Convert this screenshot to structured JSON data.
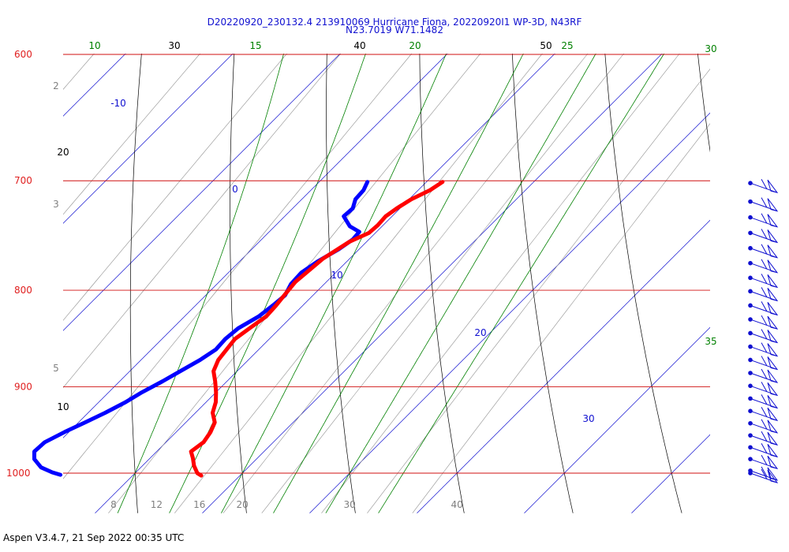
{
  "chart_data": {
    "type": "skew-t",
    "title_line1": "D20220920_230132.4 213910069 Hurricane Fiona, 20220920I1 WP-3D, N43RF",
    "title_line2": "N23.7019 W71.1482",
    "footer": "Aspen V3.4.7, 21 Sep 2022  00:35 UTC",
    "pressure_labels": [
      {
        "p": 600,
        "label": "600"
      },
      {
        "p": 700,
        "label": "700"
      },
      {
        "p": 800,
        "label": "800"
      },
      {
        "p": 900,
        "label": "900"
      },
      {
        "p": 1000,
        "label": "1000"
      }
    ],
    "bottom_temp_labels": [
      {
        "t": 8,
        "label": "8"
      },
      {
        "t": 12,
        "label": "12"
      },
      {
        "t": 16,
        "label": "16"
      },
      {
        "t": 20,
        "label": "20"
      },
      {
        "t": 30,
        "label": "30"
      },
      {
        "t": 40,
        "label": "40"
      }
    ],
    "dry_adiabat_labels": [
      {
        "theta": 10,
        "label": "10"
      },
      {
        "theta": 20,
        "label": "20"
      },
      {
        "theta": 30,
        "label": "30"
      },
      {
        "theta": 40,
        "label": "40"
      },
      {
        "theta": 50,
        "label": "50"
      }
    ],
    "moist_adiabat_labels": [
      {
        "theta": 10,
        "label": "10"
      },
      {
        "theta": 15,
        "label": "15"
      },
      {
        "theta": 20,
        "label": "20"
      },
      {
        "theta": 25,
        "label": "25"
      },
      {
        "theta": 30,
        "label": "30"
      },
      {
        "theta": 35,
        "label": "35"
      }
    ],
    "isotherm_labels": [
      {
        "t": -10,
        "label": "-10"
      },
      {
        "t": 0,
        "label": "0"
      },
      {
        "t": 10,
        "label": "10"
      },
      {
        "t": 20,
        "label": "20"
      },
      {
        "t": 30,
        "label": "30"
      }
    ],
    "mixing_ratio_labels": [
      {
        "w": 2,
        "label": "2"
      },
      {
        "w": 3,
        "label": "3"
      },
      {
        "w": 5,
        "label": "5"
      }
    ],
    "temperature_profile": [
      [
        701,
        11.5
      ],
      [
        708,
        11.1
      ],
      [
        716,
        10.2
      ],
      [
        724,
        9.7
      ],
      [
        731,
        9.4
      ],
      [
        739,
        9.5
      ],
      [
        746,
        9.4
      ],
      [
        754,
        8.4
      ],
      [
        761,
        8.0
      ],
      [
        770,
        7.5
      ],
      [
        781,
        7.3
      ],
      [
        792,
        7.1
      ],
      [
        804,
        7.3
      ],
      [
        815,
        7.5
      ],
      [
        826,
        7.6
      ],
      [
        837,
        7.2
      ],
      [
        849,
        6.8
      ],
      [
        860,
        7.0
      ],
      [
        871,
        7.2
      ],
      [
        883,
        7.8
      ],
      [
        894,
        8.9
      ],
      [
        906,
        10.0
      ],
      [
        917,
        10.9
      ],
      [
        929,
        11.6
      ],
      [
        940,
        12.7
      ],
      [
        951,
        13.2
      ],
      [
        963,
        13.5
      ],
      [
        974,
        13.2
      ],
      [
        982,
        14.0
      ],
      [
        991,
        14.8
      ],
      [
        1000,
        15.8
      ],
      [
        1003,
        16.4
      ]
    ],
    "dewpoint_profile": [
      [
        701,
        4.5
      ],
      [
        708,
        4.9
      ],
      [
        716,
        5.0
      ],
      [
        724,
        5.6
      ],
      [
        731,
        5.5
      ],
      [
        740,
        7.0
      ],
      [
        745,
        8.4
      ],
      [
        752,
        8.5
      ],
      [
        761,
        8.1
      ],
      [
        772,
        7.3
      ],
      [
        783,
        6.8
      ],
      [
        794,
        6.9
      ],
      [
        805,
        7.4
      ],
      [
        815,
        7.2
      ],
      [
        826,
        6.9
      ],
      [
        838,
        6.1
      ],
      [
        849,
        5.9
      ],
      [
        860,
        6.0
      ],
      [
        871,
        5.5
      ],
      [
        883,
        4.7
      ],
      [
        894,
        4.0
      ],
      [
        906,
        3.1
      ],
      [
        917,
        2.5
      ],
      [
        929,
        1.6
      ],
      [
        940,
        0.6
      ],
      [
        951,
        -0.4
      ],
      [
        963,
        -1.3
      ],
      [
        974,
        -1.4
      ],
      [
        983,
        -0.7
      ],
      [
        993,
        0.7
      ],
      [
        999,
        2.2
      ],
      [
        1002,
        3.2
      ]
    ],
    "wind_barb_levels": [
      702,
      718,
      732,
      746,
      760,
      774,
      788,
      801,
      815,
      829,
      843,
      857,
      871,
      885,
      899,
      913,
      927,
      941,
      955,
      969,
      983,
      997,
      1000
    ],
    "colors": {
      "isobar": "#d01010",
      "pressure_label": "#e02020",
      "dry_adiabat": "#000000",
      "moist_adiabat": "#008000",
      "isotherm": "#1010d0",
      "mixing_ratio": "#808080",
      "temperature": "#ff0000",
      "dewpoint": "#0000ff",
      "wind": "#1010d0",
      "title": "#1010d0"
    }
  }
}
